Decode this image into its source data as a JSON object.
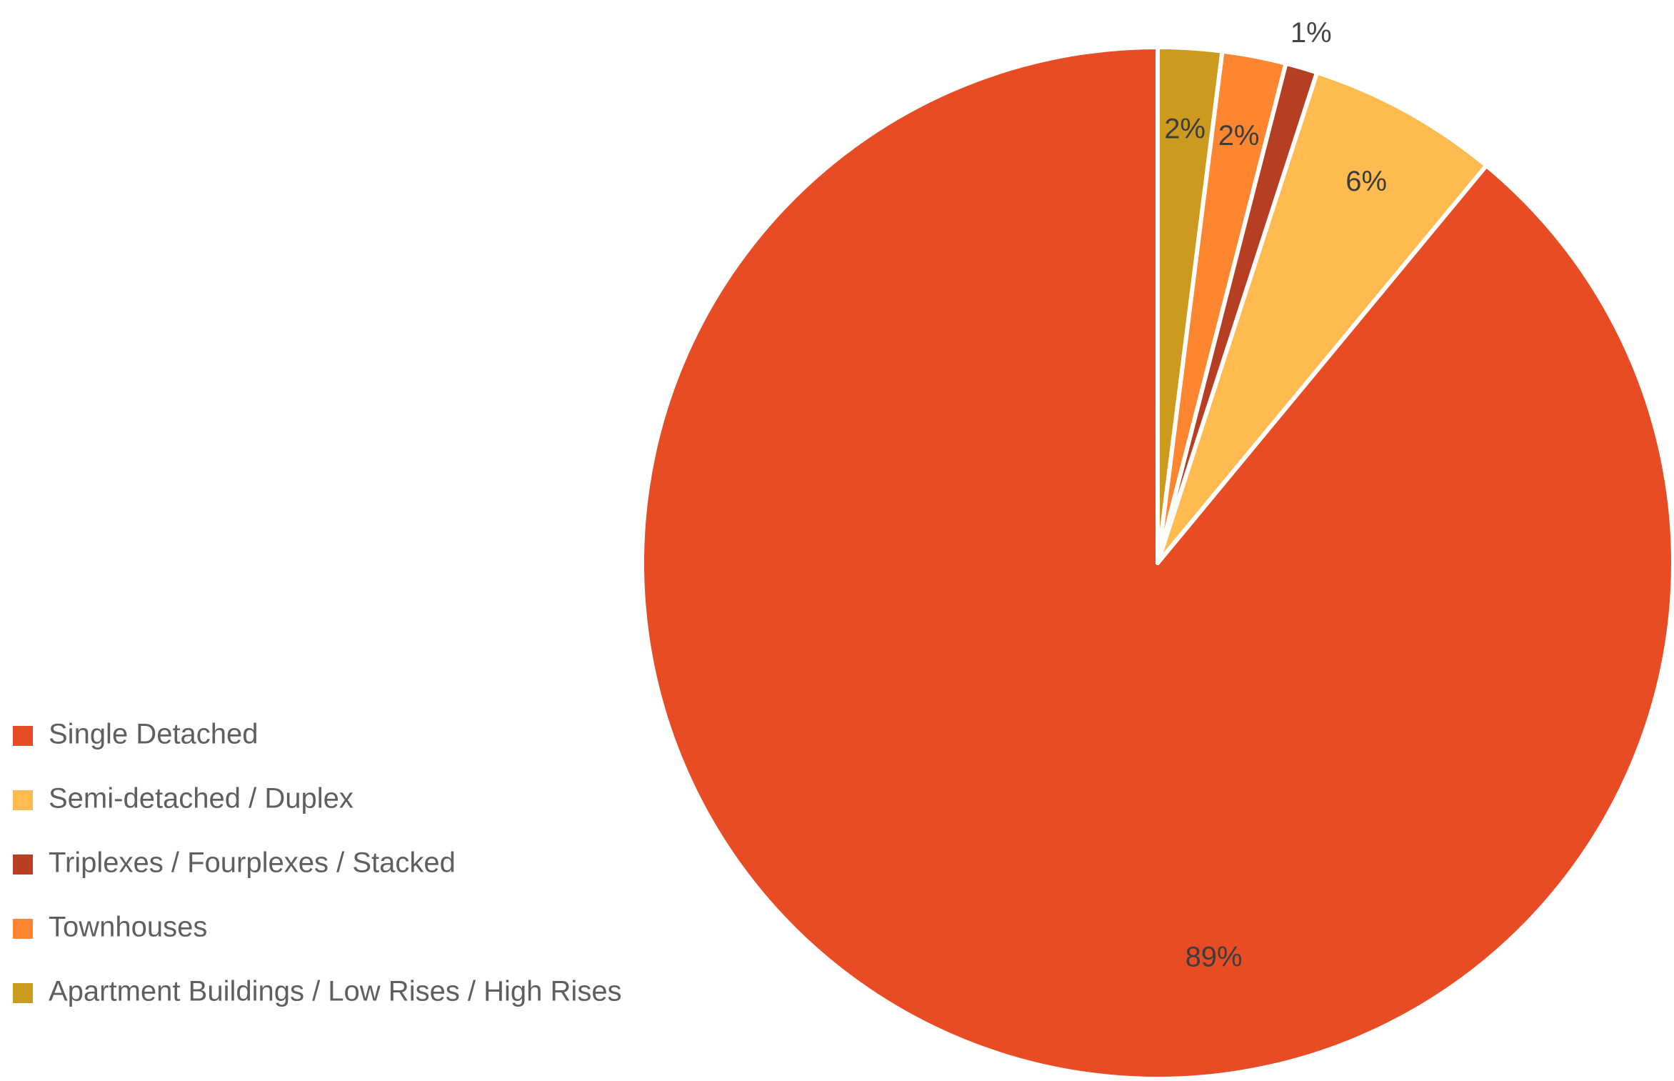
{
  "chart_data": {
    "type": "pie",
    "title": "",
    "start_angle_deg": 0,
    "direction": "counterclockwise",
    "legend_position": "left-bottom",
    "slices": [
      {
        "label": "Single Detached",
        "value": 89,
        "display": "89%",
        "color": "#E84C25"
      },
      {
        "label": "Semi-detached / Duplex",
        "value": 6,
        "display": "6%",
        "color": "#FFBB4F"
      },
      {
        "label": "Triplexes / Fourplexes / Stacked",
        "value": 1,
        "display": "1%",
        "color": "#B63F23"
      },
      {
        "label": "Townhouses",
        "value": 2,
        "display": "2%",
        "color": "#FF8630"
      },
      {
        "label": "Apartment Buildings / Low Rises / High Rises",
        "value": 2,
        "display": "2%",
        "color": "#CC9A1F"
      }
    ]
  }
}
